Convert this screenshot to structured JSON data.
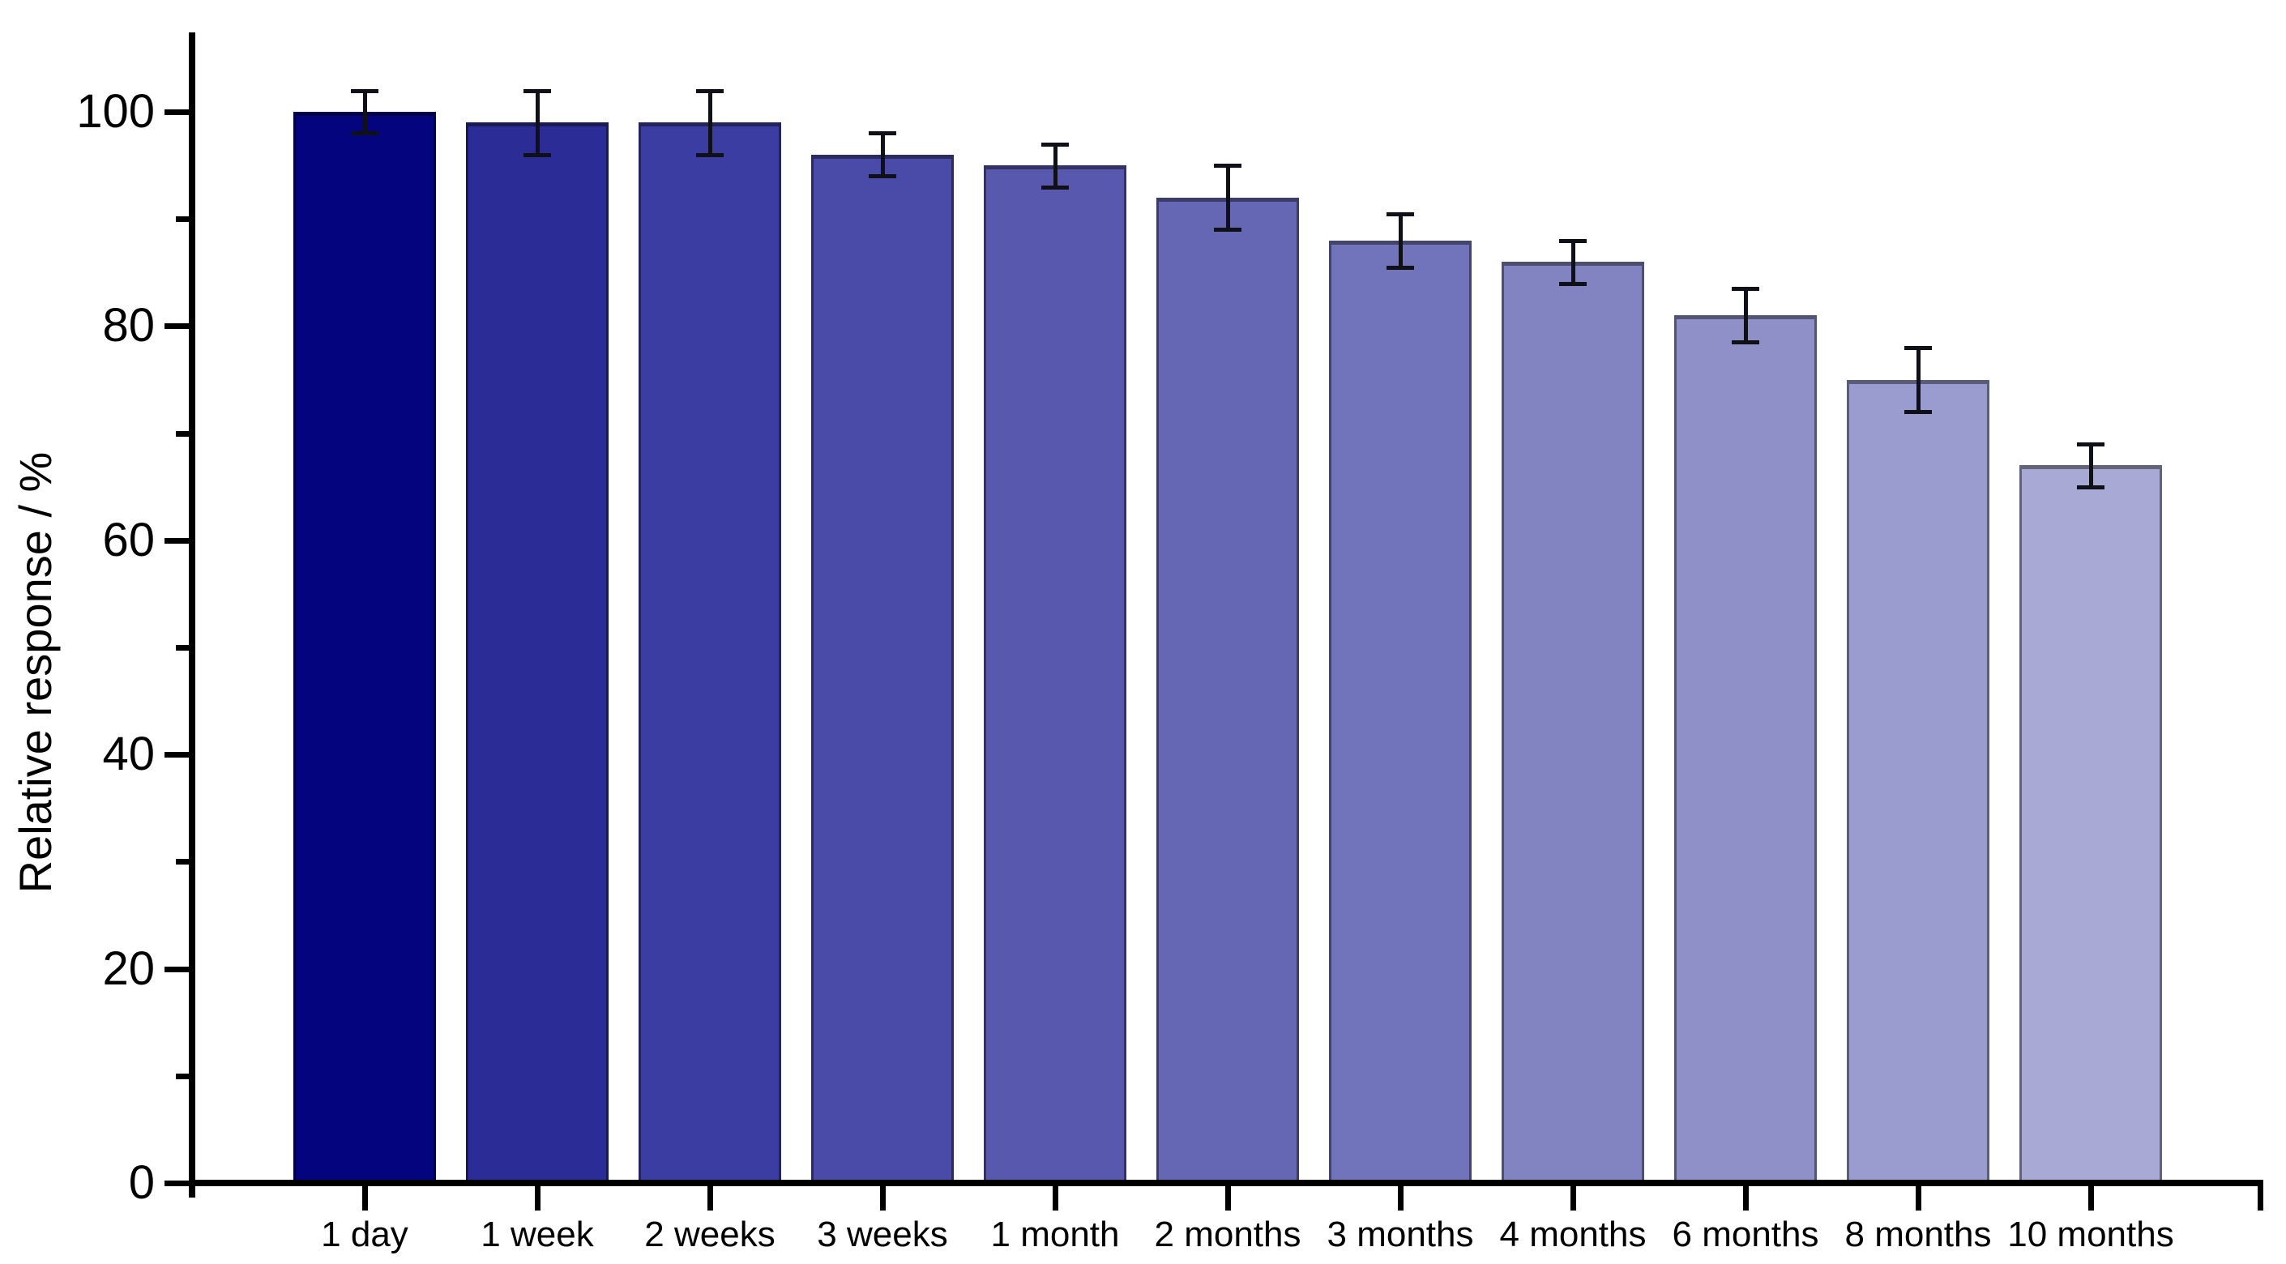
{
  "chart_data": {
    "type": "bar",
    "title": "",
    "xlabel": "",
    "ylabel": "Relative response / %",
    "ylim": [
      0,
      107
    ],
    "yticks_major": [
      0,
      20,
      40,
      60,
      80,
      100
    ],
    "yticks_minor": [
      10,
      30,
      50,
      70,
      90
    ],
    "grid": false,
    "legend_position": "none",
    "background_color": "#ffffff",
    "axis_color": "#000000",
    "tick_label_color": "#000000",
    "error_bar_color": "#101018",
    "categories": [
      "1 day",
      "1 week",
      "2 weeks",
      "3 weeks",
      "1 month",
      "2 months",
      "3 months",
      "4 months",
      "6 months",
      "8 months",
      "10 months"
    ],
    "values": [
      100,
      99,
      99,
      96,
      95,
      92,
      88,
      86,
      81,
      75,
      67
    ],
    "errors": [
      2,
      3,
      3,
      2,
      2,
      3,
      2.5,
      2,
      2.5,
      3,
      2
    ],
    "bar_fill_colors": [
      "#04047e",
      "#2c2c96",
      "#3c3da2",
      "#4a4aa8",
      "#5758ae",
      "#6566b4",
      "#7274bb",
      "#8284c1",
      "#8f90c7",
      "#9a9bce",
      "#a8a9d5"
    ],
    "bar_border_colors": [
      "#02024a",
      "#191954",
      "#22235c",
      "#2b2b60",
      "#333363",
      "#3b3c67",
      "#43456c",
      "#4d4e70",
      "#545574",
      "#5b5c78",
      "#63647c"
    ]
  }
}
